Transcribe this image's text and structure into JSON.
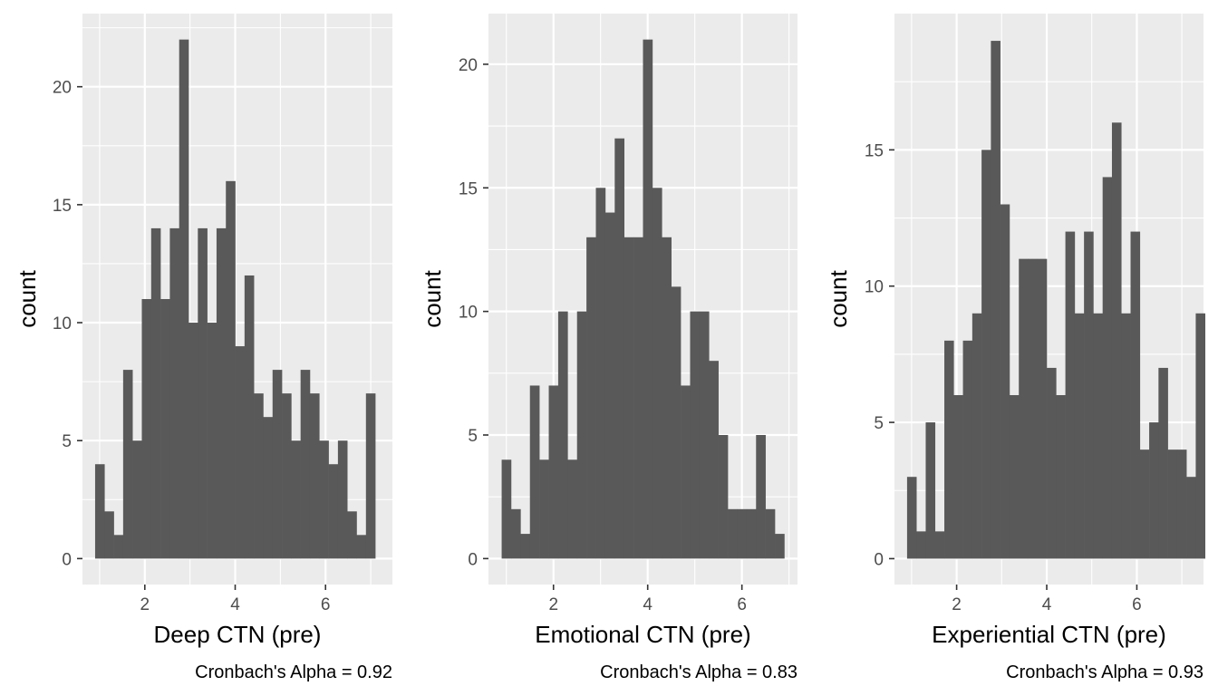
{
  "chart_data": [
    {
      "type": "bar",
      "xlabel": "Deep CTN (pre)",
      "ylabel": "count",
      "caption": "Cronbach's Alpha =  0.92",
      "xticks": [
        2,
        4,
        6
      ],
      "yticks": [
        0,
        5,
        10,
        15,
        20
      ],
      "xlim": [
        0.62,
        7.48
      ],
      "ylim": [
        -1.1,
        23.1
      ],
      "bin_start": 0.9,
      "bin_width": 0.2067,
      "values": [
        4,
        2,
        1,
        8,
        5,
        11,
        14,
        11,
        14,
        22,
        10,
        14,
        10,
        14,
        16,
        9,
        12,
        7,
        6,
        8,
        7,
        5,
        8,
        7,
        5,
        4,
        5,
        2,
        1,
        7
      ]
    },
    {
      "type": "bar",
      "xlabel": "Emotional CTN (pre)",
      "ylabel": "count",
      "caption": "Cronbach's Alpha =  0.83",
      "xticks": [
        2,
        4,
        6
      ],
      "yticks": [
        0,
        5,
        10,
        15,
        20
      ],
      "xlim": [
        0.62,
        7.18
      ],
      "ylim": [
        -1.05,
        22.05
      ],
      "bin_start": 0.9,
      "bin_width": 0.2,
      "values": [
        4,
        2,
        1,
        7,
        4,
        7,
        10,
        4,
        10,
        13,
        15,
        14,
        17,
        13,
        13,
        21,
        15,
        13,
        11,
        7,
        10,
        10,
        8,
        5,
        2,
        2,
        2,
        5,
        2,
        1
      ]
    },
    {
      "type": "bar",
      "xlabel": "Experiential CTN (pre)",
      "ylabel": "count",
      "caption": "Cronbach's Alpha =  0.93",
      "xticks": [
        2,
        4,
        6
      ],
      "yticks": [
        0,
        5,
        10,
        15
      ],
      "xlim": [
        0.62,
        7.48
      ],
      "ylim": [
        -0.95,
        20.0
      ],
      "bin_start": 0.9,
      "bin_width": 0.2067,
      "values": [
        3,
        1,
        5,
        1,
        8,
        6,
        8,
        9,
        15,
        19,
        13,
        6,
        11,
        11,
        11,
        7,
        6,
        12,
        9,
        12,
        9,
        14,
        16,
        9,
        12,
        4,
        5,
        7,
        4,
        4,
        3,
        9
      ]
    }
  ]
}
